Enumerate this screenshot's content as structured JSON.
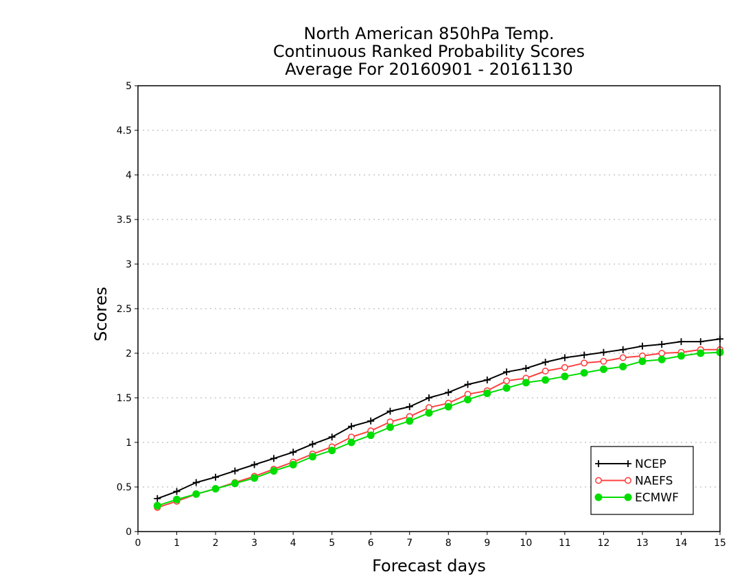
{
  "chart_data": {
    "type": "line",
    "title": [
      "North American 850hPa Temp.",
      "Continuous Ranked Probability Scores",
      "Average For 20160901 - 20161130"
    ],
    "xlabel": "Forecast days",
    "ylabel": "Scores",
    "xlim": [
      0,
      15
    ],
    "ylim": [
      0,
      5
    ],
    "xticks": [
      0,
      1,
      2,
      3,
      4,
      5,
      6,
      7,
      8,
      9,
      10,
      11,
      12,
      13,
      14,
      15
    ],
    "yticks": [
      0,
      0.5,
      1,
      1.5,
      2,
      2.5,
      3,
      3.5,
      4,
      4.5,
      5
    ],
    "grid": "horizontal dotted",
    "legend_position": "bottom-right",
    "x": [
      0.5,
      1,
      1.5,
      2,
      2.5,
      3,
      3.5,
      4,
      4.5,
      5,
      5.5,
      6,
      6.5,
      7,
      7.5,
      8,
      8.5,
      9,
      9.5,
      10,
      10.5,
      11,
      11.5,
      12,
      12.5,
      13,
      13.5,
      14,
      14.5,
      15
    ],
    "series": [
      {
        "name": "NCEP",
        "color": "#000000",
        "marker": "plus",
        "values": [
          0.37,
          0.45,
          0.55,
          0.61,
          0.68,
          0.75,
          0.82,
          0.89,
          0.98,
          1.06,
          1.18,
          1.24,
          1.35,
          1.4,
          1.5,
          1.56,
          1.65,
          1.7,
          1.79,
          1.83,
          1.9,
          1.95,
          1.98,
          2.01,
          2.04,
          2.08,
          2.1,
          2.13,
          2.13,
          2.16
        ]
      },
      {
        "name": "NAEFS",
        "color": "#ff4040",
        "marker": "open-circle",
        "values": [
          0.27,
          0.34,
          0.42,
          0.48,
          0.55,
          0.62,
          0.7,
          0.78,
          0.87,
          0.95,
          1.06,
          1.13,
          1.23,
          1.29,
          1.39,
          1.44,
          1.54,
          1.58,
          1.69,
          1.72,
          1.8,
          1.84,
          1.89,
          1.91,
          1.95,
          1.97,
          2.0,
          2.01,
          2.04,
          2.04
        ]
      },
      {
        "name": "ECMWF",
        "color": "#00dd00",
        "marker": "filled-circle",
        "values": [
          0.29,
          0.36,
          0.42,
          0.48,
          0.54,
          0.6,
          0.68,
          0.75,
          0.84,
          0.91,
          1.0,
          1.08,
          1.17,
          1.24,
          1.33,
          1.4,
          1.48,
          1.55,
          1.61,
          1.67,
          1.7,
          1.74,
          1.78,
          1.82,
          1.85,
          1.91,
          1.93,
          1.97,
          2.0,
          2.01
        ]
      }
    ]
  }
}
